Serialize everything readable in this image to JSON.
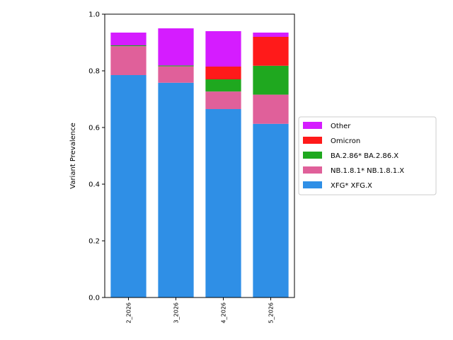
{
  "chart_data": {
    "type": "bar",
    "stacked": true,
    "title": "",
    "xlabel": "",
    "ylabel": "Variant Prevalence",
    "ylim": [
      0,
      1.0
    ],
    "yticks": [
      "0.0",
      "0.2",
      "0.4",
      "0.6",
      "0.8",
      "1.0"
    ],
    "categories": [
      "2_2026",
      "3_2026",
      "4_2026",
      "5_2026"
    ],
    "series": [
      {
        "name": "XFG* XFG.X",
        "color": "#2f8fe6",
        "values": [
          0.785,
          0.758,
          0.665,
          0.613
        ]
      },
      {
        "name": "NB.1.8.1* NB.1.8.1.X",
        "color": "#e0609a",
        "values": [
          0.102,
          0.058,
          0.062,
          0.103
        ]
      },
      {
        "name": "BA.2.86* BA.2.86.X",
        "color": "#1fa81f",
        "values": [
          0.003,
          0.003,
          0.043,
          0.102
        ]
      },
      {
        "name": "Omicron",
        "color": "#ff1a1a",
        "values": [
          0.0,
          0.0,
          0.045,
          0.102
        ]
      },
      {
        "name": "Other",
        "color": "#d51cff",
        "values": [
          0.045,
          0.131,
          0.125,
          0.015
        ]
      }
    ],
    "legend_order": [
      "Other",
      "Omicron",
      "BA.2.86* BA.2.86.X",
      "NB.1.8.1* NB.1.8.1.X",
      "XFG* XFG.X"
    ],
    "legend_position": "center-right",
    "grid": false
  }
}
